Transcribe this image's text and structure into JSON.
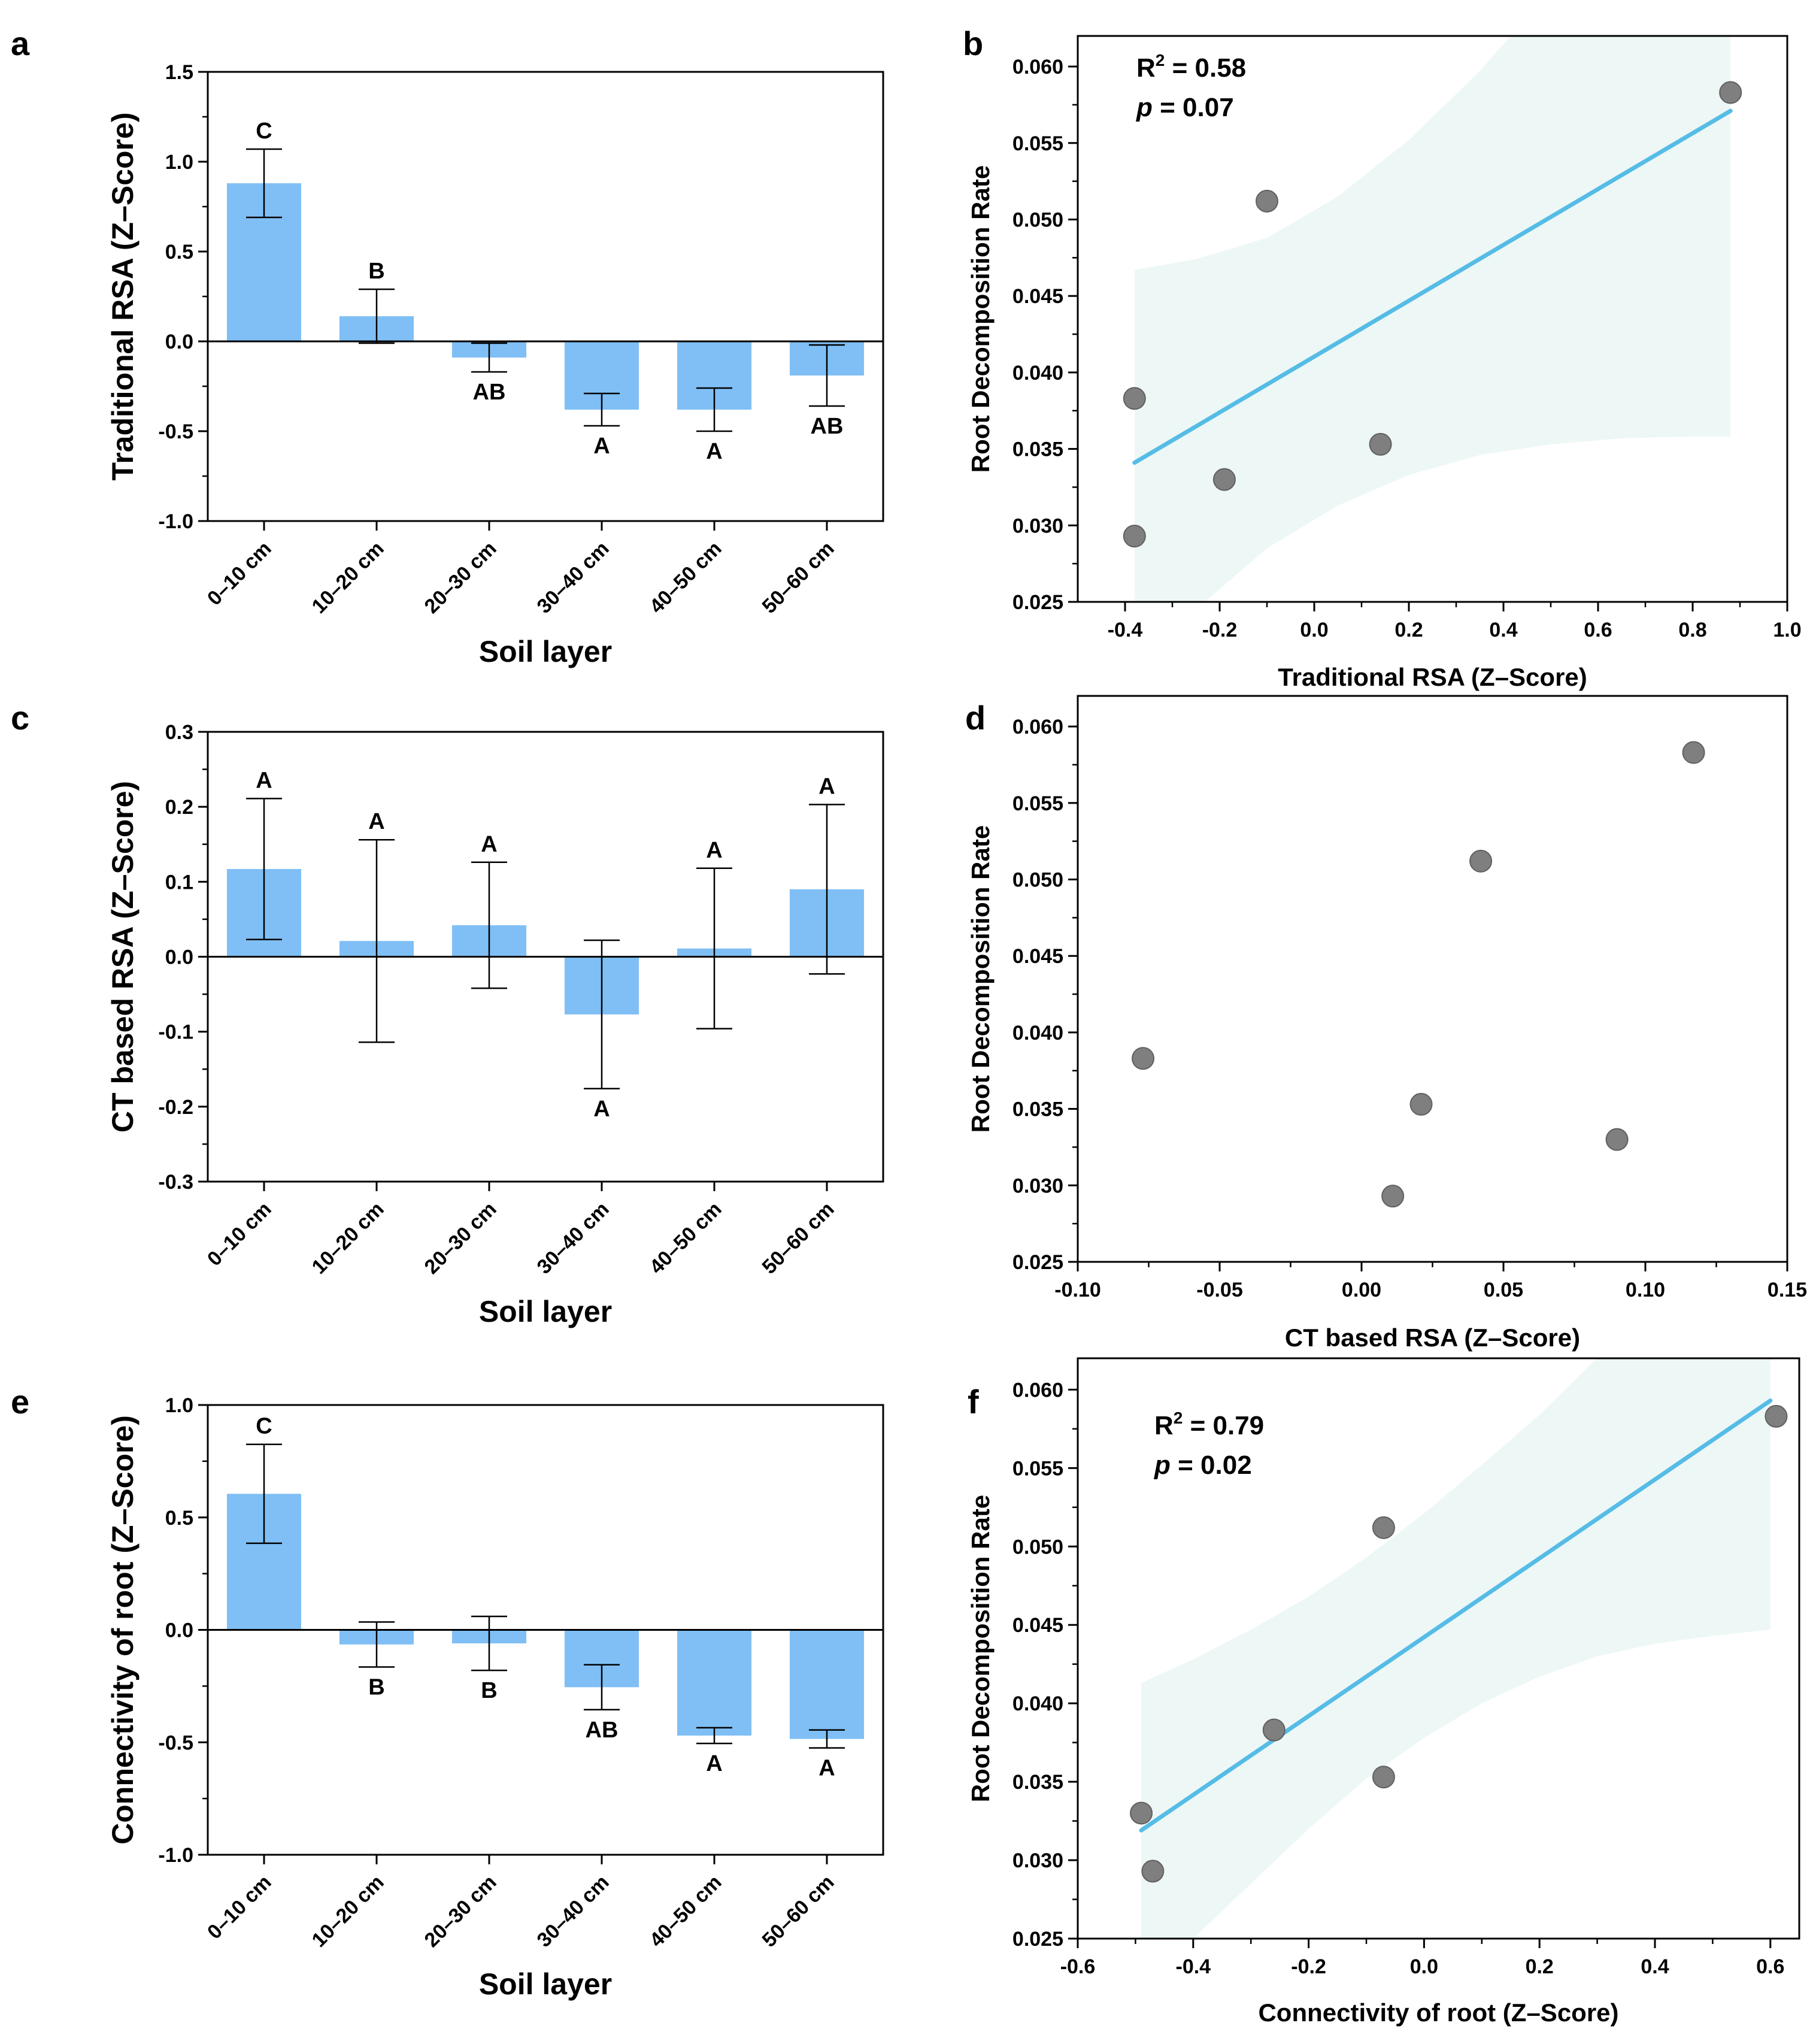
{
  "colors": {
    "bar": "#7fbff5",
    "fit_line": "#55bce6",
    "ci_band": "#edf7f6",
    "point": "#7f7f7f",
    "point_stroke": "#606060"
  },
  "chart_data": [
    {
      "panel": "a",
      "type": "bar",
      "categories": [
        "0–10 cm",
        "10–20 cm",
        "20–30 cm",
        "30–40 cm",
        "40–50 cm",
        "50–60 cm"
      ],
      "values": [
        0.88,
        0.14,
        -0.09,
        -0.38,
        -0.38,
        -0.19
      ],
      "errors": [
        0.19,
        0.15,
        0.08,
        0.09,
        0.12,
        0.17
      ],
      "significance": [
        "C",
        "B",
        "AB",
        "A",
        "A",
        "AB"
      ],
      "xlabel": "Soil layer",
      "ylabel": "Traditional RSA (Z–Score)",
      "ylim": [
        -1.0,
        1.5
      ],
      "yticks": [
        "-1.0",
        "-0.5",
        "0.0",
        "0.5",
        "1.0",
        "1.5"
      ]
    },
    {
      "panel": "b",
      "type": "scatter",
      "x": [
        -0.38,
        -0.38,
        -0.19,
        -0.1,
        0.14,
        0.88
      ],
      "y": [
        0.0383,
        0.0293,
        0.033,
        0.0512,
        0.0353,
        0.0583
      ],
      "fit": {
        "x": [
          -0.38,
          0.88
        ],
        "y": [
          0.0341,
          0.0571
        ]
      },
      "ci": {
        "x": [
          -0.38,
          -0.25,
          -0.1,
          0.05,
          0.2,
          0.35,
          0.5,
          0.65,
          0.8,
          0.88
        ],
        "upper": [
          0.0467,
          0.0474,
          0.0488,
          0.0515,
          0.0552,
          0.0597,
          0.065,
          0.07,
          0.07,
          0.07
        ],
        "lower": [
          0.0215,
          0.0245,
          0.0285,
          0.0313,
          0.0333,
          0.0346,
          0.0353,
          0.0357,
          0.0358,
          0.0358
        ]
      },
      "xlabel": "Traditional RSA (Z–Score)",
      "ylabel": "Root Decomposition Rate",
      "xlim": [
        -0.5,
        1.0
      ],
      "ylim": [
        0.025,
        0.062
      ],
      "xticks": [
        "-0.4",
        "-0.2",
        "0.0",
        "0.2",
        "0.4",
        "0.6",
        "0.8",
        "1.0"
      ],
      "yticks": [
        "0.025",
        "0.030",
        "0.035",
        "0.040",
        "0.045",
        "0.050",
        "0.055",
        "0.060"
      ],
      "r2_label": "R",
      "r2_value": " = 0.58",
      "p_label": "p",
      "p_value": " = 0.07"
    },
    {
      "panel": "c",
      "type": "bar",
      "categories": [
        "0–10 cm",
        "10–20 cm",
        "20–30 cm",
        "30–40 cm",
        "40–50 cm",
        "50–60 cm"
      ],
      "values": [
        0.117,
        0.021,
        0.042,
        -0.077,
        0.011,
        0.09
      ],
      "errors": [
        0.094,
        0.135,
        0.084,
        0.099,
        0.107,
        0.113
      ],
      "significance": [
        "A",
        "A",
        "A",
        "A",
        "A",
        "A"
      ],
      "xlabel": "Soil layer",
      "ylabel": "CT based RSA (Z–Score)",
      "ylim": [
        -0.3,
        0.3
      ],
      "yticks": [
        "-0.3",
        "-0.2",
        "-0.1",
        "0.0",
        "0.1",
        "0.2",
        "0.3"
      ]
    },
    {
      "panel": "d",
      "type": "scatter",
      "x": [
        -0.077,
        0.011,
        0.021,
        0.042,
        0.09,
        0.117
      ],
      "y": [
        0.0383,
        0.0293,
        0.0353,
        0.0512,
        0.033,
        0.0583
      ],
      "xlabel": "CT based RSA (Z–Score)",
      "ylabel": "Root Decomposition Rate",
      "xlim": [
        -0.1,
        0.15
      ],
      "ylim": [
        0.025,
        0.062
      ],
      "xticks": [
        "-0.10",
        "-0.05",
        "0.00",
        "0.05",
        "0.10",
        "0.15"
      ],
      "yticks": [
        "0.025",
        "0.030",
        "0.035",
        "0.040",
        "0.045",
        "0.050",
        "0.055",
        "0.060"
      ]
    },
    {
      "panel": "e",
      "type": "bar",
      "categories": [
        "0–10 cm",
        "10–20 cm",
        "20–30 cm",
        "30–40 cm",
        "40–50 cm",
        "50–60 cm"
      ],
      "values": [
        0.605,
        -0.065,
        -0.06,
        -0.255,
        -0.47,
        -0.485
      ],
      "errors": [
        0.22,
        0.1,
        0.12,
        0.1,
        0.035,
        0.04
      ],
      "significance": [
        "C",
        "B",
        "B",
        "AB",
        "A",
        "A"
      ],
      "xlabel": "Soil layer",
      "ylabel": "Connectivity of root (Z–Score)",
      "ylim": [
        -1.0,
        1.0
      ],
      "yticks": [
        "-1.0",
        "-0.5",
        "0.0",
        "0.5",
        "1.0"
      ]
    },
    {
      "panel": "f",
      "type": "scatter",
      "x": [
        -0.49,
        -0.47,
        -0.26,
        -0.07,
        -0.07,
        0.61
      ],
      "y": [
        0.033,
        0.0293,
        0.0383,
        0.0512,
        0.0353,
        0.0583
      ],
      "fit": {
        "x": [
          -0.49,
          0.6
        ],
        "y": [
          0.0319,
          0.0593
        ]
      },
      "ci": {
        "x": [
          -0.49,
          -0.4,
          -0.3,
          -0.2,
          -0.1,
          0.0,
          0.1,
          0.2,
          0.3,
          0.4,
          0.5,
          0.6
        ],
        "upper": [
          0.0413,
          0.0428,
          0.0447,
          0.0468,
          0.0493,
          0.0521,
          0.0552,
          0.0584,
          0.062,
          0.062,
          0.062,
          0.062
        ],
        "lower": [
          0.0216,
          0.025,
          0.0285,
          0.032,
          0.0352,
          0.0378,
          0.04,
          0.0417,
          0.043,
          0.0438,
          0.0443,
          0.0447
        ]
      },
      "xlabel": "Connectivity of root (Z–Score)",
      "ylabel": "Root Decomposition Rate",
      "xlim": [
        -0.6,
        0.65
      ],
      "ylim": [
        0.025,
        0.062
      ],
      "xticks": [
        "-0.6",
        "-0.4",
        "-0.2",
        "0.0",
        "0.2",
        "0.4",
        "0.6"
      ],
      "yticks": [
        "0.025",
        "0.030",
        "0.035",
        "0.040",
        "0.045",
        "0.050",
        "0.055",
        "0.060"
      ],
      "r2_label": "R",
      "r2_value": " = 0.79",
      "p_label": "p",
      "p_value": " = 0.02"
    }
  ]
}
